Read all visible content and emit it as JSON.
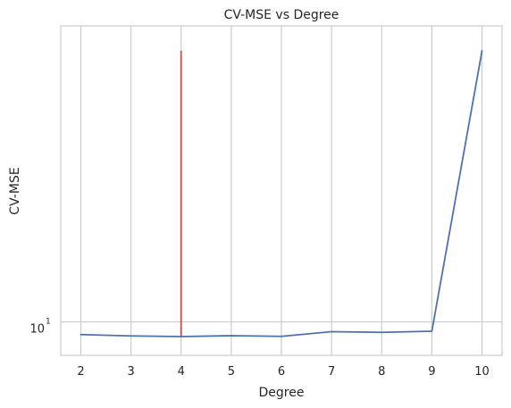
{
  "chart_data": {
    "type": "line",
    "title": "CV-MSE vs Degree",
    "xlabel": "Degree",
    "ylabel": "CV-MSE",
    "y_scale": "log",
    "grid": true,
    "x": [
      2,
      3,
      4,
      5,
      6,
      7,
      8,
      9,
      10
    ],
    "x_ticks": [
      "2",
      "3",
      "4",
      "5",
      "6",
      "7",
      "8",
      "9",
      "10"
    ],
    "y_ticks": [
      {
        "value": 10,
        "base": "10",
        "exp": "1"
      }
    ],
    "xlim": [
      1.6,
      10.4
    ],
    "ylim": [
      8.54,
      40.5
    ],
    "series": [
      {
        "values": [
          9.42,
          9.36,
          9.33,
          9.37,
          9.34,
          9.55,
          9.52,
          9.57,
          36.0
        ],
        "color": "#4c72b0"
      }
    ],
    "marker_line": {
      "x": 4,
      "y_from": 9.33,
      "y_to": 36.0,
      "color": "#c44e52"
    }
  }
}
